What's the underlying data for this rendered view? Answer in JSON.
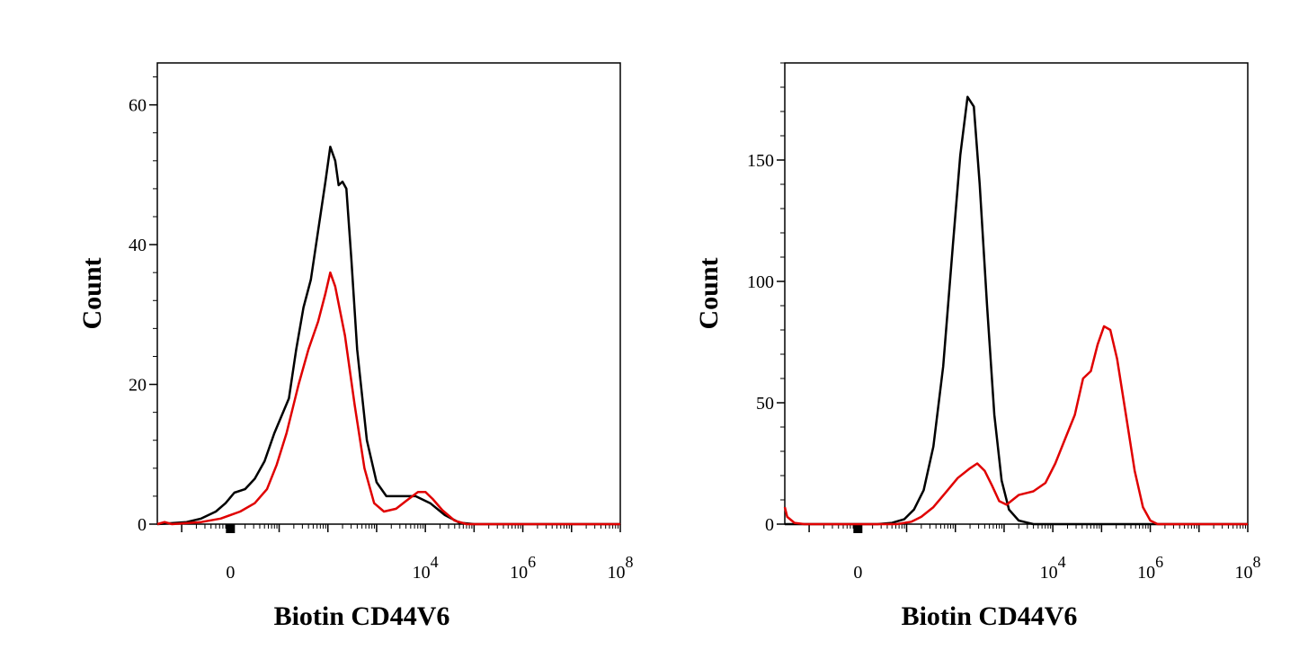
{
  "chart_data": [
    {
      "type": "line",
      "xlabel": "Biotin CD44V6",
      "ylabel": "Count",
      "x_scale": "biexponential",
      "xlim": [
        "-10^3",
        "10^8"
      ],
      "ylim": [
        0,
        66
      ],
      "y_ticks": [
        0,
        20,
        40,
        60
      ],
      "x_ticks": [
        {
          "label_base": "0",
          "label_exp": ""
        },
        {
          "label_base": "10",
          "label_exp": "4"
        },
        {
          "label_base": "10",
          "label_exp": "6"
        },
        {
          "label_base": "10",
          "label_exp": "8"
        }
      ],
      "grid": false,
      "series": [
        {
          "color": "#000000",
          "points": [
            [
              -1.5,
              0
            ],
            [
              -0.9,
              0.3
            ],
            [
              -0.6,
              0.8
            ],
            [
              -0.3,
              1.8
            ],
            [
              -0.1,
              3
            ],
            [
              0.08,
              4.5
            ],
            [
              0.3,
              5
            ],
            [
              0.5,
              6.5
            ],
            [
              0.7,
              9
            ],
            [
              0.9,
              13
            ],
            [
              1.2,
              18
            ],
            [
              1.35,
              25
            ],
            [
              1.5,
              31
            ],
            [
              1.65,
              35
            ],
            [
              1.8,
              42
            ],
            [
              1.95,
              49
            ],
            [
              2.05,
              54
            ],
            [
              2.15,
              52
            ],
            [
              2.22,
              48.5
            ],
            [
              2.3,
              49
            ],
            [
              2.38,
              48
            ],
            [
              2.48,
              38
            ],
            [
              2.6,
              25
            ],
            [
              2.8,
              12
            ],
            [
              3.0,
              6
            ],
            [
              3.2,
              4
            ],
            [
              3.5,
              4
            ],
            [
              3.8,
              4
            ],
            [
              4.1,
              3
            ],
            [
              4.4,
              1.3
            ],
            [
              4.7,
              0.2
            ],
            [
              5.0,
              0
            ],
            [
              8.0,
              0
            ]
          ]
        },
        {
          "color": "#e00000",
          "points": [
            [
              -1.5,
              0
            ],
            [
              -1.35,
              0.3
            ],
            [
              -1.2,
              0
            ],
            [
              -0.6,
              0.3
            ],
            [
              -0.2,
              0.8
            ],
            [
              0.2,
              1.8
            ],
            [
              0.5,
              3
            ],
            [
              0.75,
              5
            ],
            [
              0.95,
              8.5
            ],
            [
              1.15,
              13
            ],
            [
              1.4,
              20
            ],
            [
              1.6,
              25
            ],
            [
              1.8,
              29
            ],
            [
              1.95,
              33
            ],
            [
              2.05,
              36
            ],
            [
              2.15,
              34
            ],
            [
              2.35,
              27
            ],
            [
              2.55,
              17
            ],
            [
              2.75,
              8
            ],
            [
              2.95,
              3
            ],
            [
              3.15,
              1.8
            ],
            [
              3.4,
              2.2
            ],
            [
              3.6,
              3.3
            ],
            [
              3.85,
              4.6
            ],
            [
              4.0,
              4.6
            ],
            [
              4.15,
              3.6
            ],
            [
              4.35,
              2
            ],
            [
              4.6,
              0.5
            ],
            [
              4.85,
              0
            ],
            [
              8.0,
              0
            ]
          ]
        }
      ]
    },
    {
      "type": "line",
      "xlabel": "Biotin CD44V6",
      "ylabel": "Count",
      "x_scale": "biexponential",
      "xlim": [
        "-10^3",
        "10^8"
      ],
      "ylim": [
        0,
        190
      ],
      "y_ticks": [
        0,
        50,
        100,
        150
      ],
      "x_ticks": [
        {
          "label_base": "0",
          "label_exp": ""
        },
        {
          "label_base": "10",
          "label_exp": "4"
        },
        {
          "label_base": "10",
          "label_exp": "6"
        },
        {
          "label_base": "10",
          "label_exp": "8"
        }
      ],
      "grid": false,
      "series": [
        {
          "color": "#000000",
          "points": [
            [
              -1.5,
              0
            ],
            [
              0.4,
              0
            ],
            [
              0.7,
              0.5
            ],
            [
              0.95,
              2
            ],
            [
              1.15,
              6
            ],
            [
              1.35,
              14
            ],
            [
              1.55,
              32
            ],
            [
              1.75,
              65
            ],
            [
              1.95,
              115
            ],
            [
              2.1,
              152
            ],
            [
              2.25,
              176
            ],
            [
              2.38,
              172
            ],
            [
              2.5,
              140
            ],
            [
              2.65,
              90
            ],
            [
              2.8,
              45
            ],
            [
              2.95,
              18
            ],
            [
              3.1,
              6
            ],
            [
              3.3,
              1.5
            ],
            [
              3.6,
              0
            ],
            [
              8.0,
              0
            ]
          ]
        },
        {
          "color": "#e00000",
          "points": [
            [
              -1.5,
              7
            ],
            [
              -1.45,
              3
            ],
            [
              -1.3,
              0.5
            ],
            [
              -1.1,
              0
            ],
            [
              0.8,
              0
            ],
            [
              1.1,
              1
            ],
            [
              1.3,
              3
            ],
            [
              1.55,
              7
            ],
            [
              1.8,
              13
            ],
            [
              2.05,
              19
            ],
            [
              2.3,
              23
            ],
            [
              2.45,
              25
            ],
            [
              2.6,
              22
            ],
            [
              2.75,
              16
            ],
            [
              2.9,
              9.5
            ],
            [
              3.05,
              8
            ],
            [
              3.3,
              12
            ],
            [
              3.6,
              13.5
            ],
            [
              3.85,
              17
            ],
            [
              4.05,
              25
            ],
            [
              4.25,
              35
            ],
            [
              4.45,
              45
            ],
            [
              4.62,
              60
            ],
            [
              4.78,
              63
            ],
            [
              4.92,
              74
            ],
            [
              5.05,
              81.5
            ],
            [
              5.18,
              80
            ],
            [
              5.32,
              68
            ],
            [
              5.5,
              45
            ],
            [
              5.68,
              22
            ],
            [
              5.85,
              7
            ],
            [
              6.0,
              1.5
            ],
            [
              6.15,
              0
            ],
            [
              8.0,
              0
            ]
          ]
        }
      ]
    }
  ]
}
